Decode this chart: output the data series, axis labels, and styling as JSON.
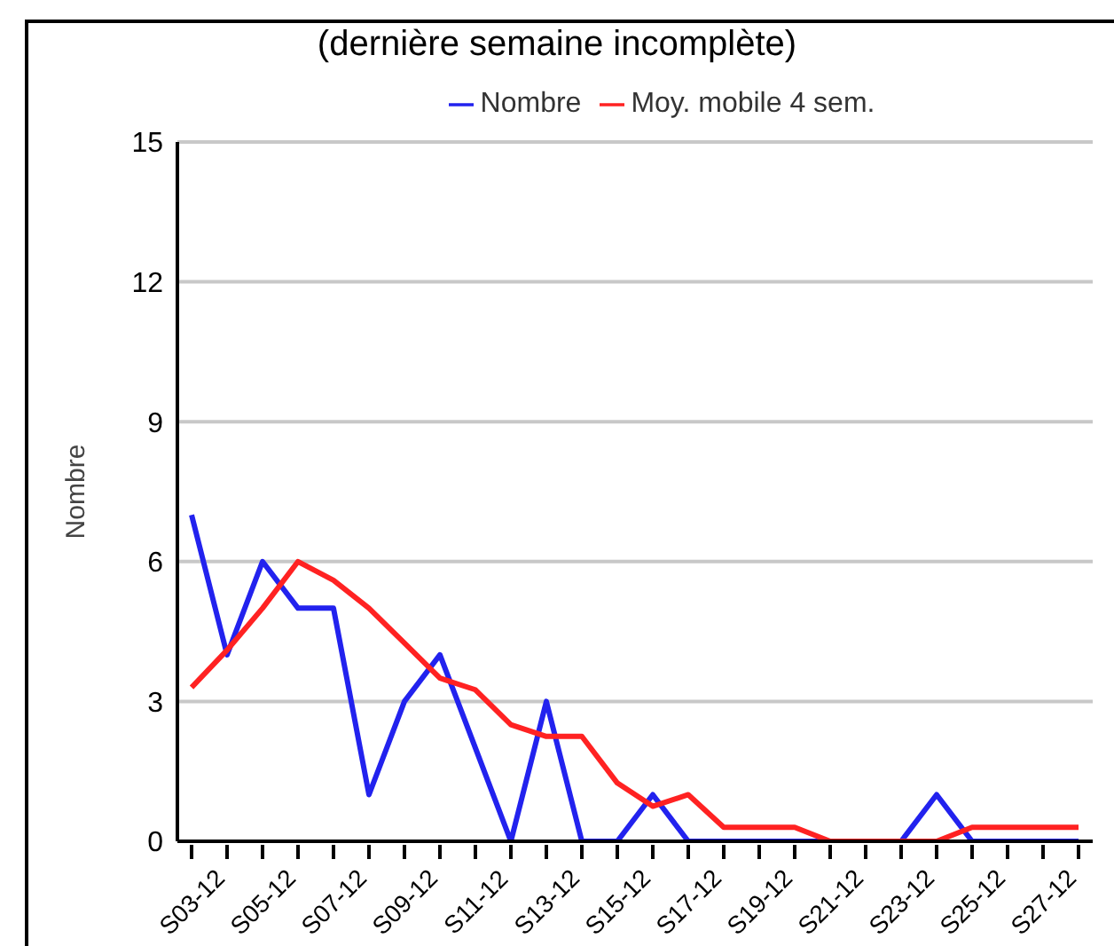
{
  "chart_data": {
    "type": "line",
    "subtitle": "(dernière semaine incomplète)",
    "ylabel": "Nombre",
    "categories": [
      "S03-12",
      null,
      "S05-12",
      null,
      "S07-12",
      null,
      "S09-12",
      null,
      "S11-12",
      null,
      "S13-12",
      null,
      "S15-12",
      null,
      "S17-12",
      null,
      "S19-12",
      null,
      "S21-12",
      null,
      "S23-12",
      null,
      "S25-12",
      null,
      "S27-12",
      null
    ],
    "series": [
      {
        "name": "Nombre",
        "color": "#2222ee",
        "values": [
          7,
          4,
          6,
          5,
          5,
          1,
          3,
          4,
          2,
          0,
          3,
          0,
          0,
          1,
          0,
          0,
          0,
          0,
          0,
          0,
          0,
          1,
          0,
          0,
          0,
          0
        ]
      },
      {
        "name": "Moy. mobile 4 sem.",
        "color": "#ff2222",
        "values": [
          3.3,
          4.1,
          5,
          6,
          5.6,
          5,
          4.25,
          3.5,
          3.25,
          2.5,
          2.25,
          2.25,
          1.25,
          0.75,
          1,
          0.3,
          0.3,
          0.3,
          0,
          0,
          0,
          0,
          0.3,
          0.3,
          0.3,
          0.3
        ]
      }
    ],
    "ylim": [
      0,
      15
    ],
    "yticks": [
      0,
      3,
      6,
      9,
      12,
      15
    ],
    "grid": "y",
    "legend": "top",
    "marker": "none",
    "line_style": "solid"
  }
}
